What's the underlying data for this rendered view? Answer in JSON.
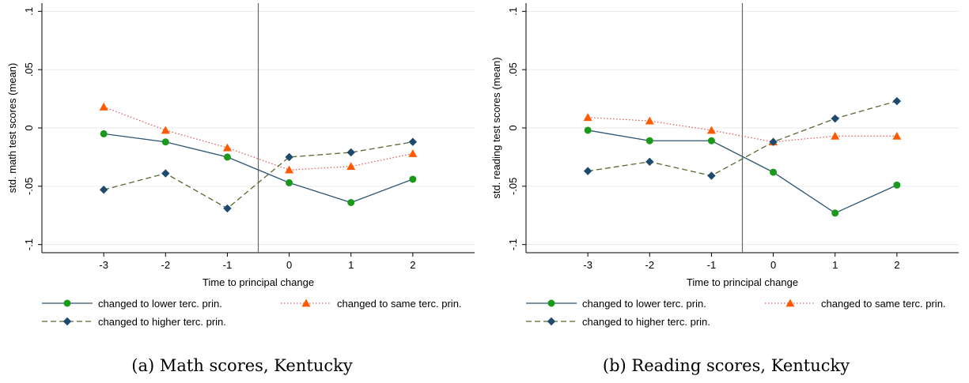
{
  "chart_data": [
    {
      "type": "line",
      "caption": "(a) Math scores, Kentucky",
      "xlabel": "Time to principal change",
      "ylabel": "std. math test scores (mean)",
      "x": [
        -3,
        -2,
        -1,
        0,
        1,
        2
      ],
      "xticks": [
        "-3",
        "-2",
        "-1",
        "0",
        "1",
        "2"
      ],
      "xlim": [
        -4,
        3
      ],
      "yticks": [
        -0.1,
        -0.05,
        0,
        0.05,
        0.1
      ],
      "ytick_labels": [
        "-.1",
        "-.05",
        "0",
        ".05",
        ".1"
      ],
      "ylim": [
        -0.107,
        0.107
      ],
      "event_line_x": -0.5,
      "grid": true,
      "series": [
        {
          "name": "changed to lower terc. prin.",
          "color": "#2a5573",
          "marker_color": "#1a9a1a",
          "marker": "circle",
          "dash": "solid",
          "values": [
            -0.005,
            -0.012,
            -0.025,
            -0.047,
            -0.064,
            -0.044
          ]
        },
        {
          "name": "changed to same terc. prin.",
          "color": "#e06060",
          "marker_color": "#ff5a00",
          "marker": "triangle",
          "dash": "dotted",
          "values": [
            0.018,
            -0.002,
            -0.017,
            -0.036,
            -0.033,
            -0.022
          ]
        },
        {
          "name": "changed to higher terc. prin.",
          "color": "#556b2f",
          "marker_color": "#1e4a6e",
          "marker": "diamond",
          "dash": "dashed",
          "values": [
            -0.053,
            -0.039,
            -0.069,
            -0.025,
            -0.021,
            -0.012
          ]
        }
      ]
    },
    {
      "type": "line",
      "caption": "(b) Reading scores, Kentucky",
      "xlabel": "Time to principal change",
      "ylabel": "std. reading test scores (mean)",
      "x": [
        -3,
        -2,
        -1,
        0,
        1,
        2
      ],
      "xticks": [
        "-3",
        "-2",
        "-1",
        "0",
        "1",
        "2"
      ],
      "xlim": [
        -4,
        3
      ],
      "yticks": [
        -0.1,
        -0.05,
        0,
        0.05,
        0.1
      ],
      "ytick_labels": [
        "-.1",
        "-.05",
        "0",
        ".05",
        ".1"
      ],
      "ylim": [
        -0.107,
        0.107
      ],
      "event_line_x": -0.5,
      "grid": true,
      "series": [
        {
          "name": "changed to lower terc. prin.",
          "color": "#2a5573",
          "marker_color": "#1a9a1a",
          "marker": "circle",
          "dash": "solid",
          "values": [
            -0.002,
            -0.011,
            -0.011,
            -0.038,
            -0.073,
            -0.049
          ]
        },
        {
          "name": "changed to same terc. prin.",
          "color": "#e06060",
          "marker_color": "#ff5a00",
          "marker": "triangle",
          "dash": "dotted",
          "values": [
            0.009,
            0.006,
            -0.002,
            -0.012,
            -0.007,
            -0.007
          ]
        },
        {
          "name": "changed to higher terc. prin.",
          "color": "#556b2f",
          "marker_color": "#1e4a6e",
          "marker": "diamond",
          "dash": "dashed",
          "values": [
            -0.037,
            -0.029,
            -0.041,
            -0.012,
            0.008,
            0.023
          ]
        }
      ]
    }
  ]
}
